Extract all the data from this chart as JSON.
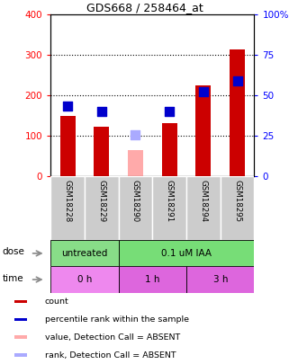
{
  "title": "GDS668 / 258464_at",
  "samples": [
    "GSM18228",
    "GSM18229",
    "GSM18290",
    "GSM18291",
    "GSM18294",
    "GSM18295"
  ],
  "counts": [
    150,
    122,
    65,
    133,
    224,
    313
  ],
  "ranks": [
    175,
    160,
    103,
    160,
    210,
    237
  ],
  "absent_flags": [
    false,
    false,
    true,
    false,
    false,
    false
  ],
  "ylim_left": [
    0,
    400
  ],
  "ylim_right": [
    0,
    100
  ],
  "yticks_left": [
    0,
    100,
    200,
    300,
    400
  ],
  "yticks_right": [
    0,
    25,
    50,
    75,
    100
  ],
  "ytick_labels_left": [
    "0",
    "100",
    "200",
    "300",
    "400"
  ],
  "ytick_labels_right": [
    "0",
    "25",
    "50",
    "75",
    "100%"
  ],
  "grid_values": [
    100,
    200,
    300
  ],
  "dose_labels": [
    {
      "text": "untreated",
      "span": [
        0,
        2
      ],
      "color": "#88dd88"
    },
    {
      "text": "0.1 uM IAA",
      "span": [
        2,
        6
      ],
      "color": "#77dd77"
    }
  ],
  "time_labels": [
    {
      "text": "0 h",
      "span": [
        0,
        2
      ],
      "color": "#ee88ee"
    },
    {
      "text": "1 h",
      "span": [
        2,
        4
      ],
      "color": "#dd66dd"
    },
    {
      "text": "3 h",
      "span": [
        4,
        6
      ],
      "color": "#dd66dd"
    }
  ],
  "bar_color_present": "#cc0000",
  "bar_color_absent": "#ffaaaa",
  "rank_color_present": "#0000cc",
  "rank_color_absent": "#aaaaff",
  "bar_width": 0.45,
  "rank_marker_size": 45,
  "background_color": "#ffffff",
  "plot_bg_color": "#ffffff",
  "label_area_bg": "#cccccc",
  "legend_items": [
    {
      "label": "count",
      "color": "#cc0000"
    },
    {
      "label": "percentile rank within the sample",
      "color": "#0000cc"
    },
    {
      "label": "value, Detection Call = ABSENT",
      "color": "#ffaaaa"
    },
    {
      "label": "rank, Detection Call = ABSENT",
      "color": "#aaaaff"
    }
  ]
}
